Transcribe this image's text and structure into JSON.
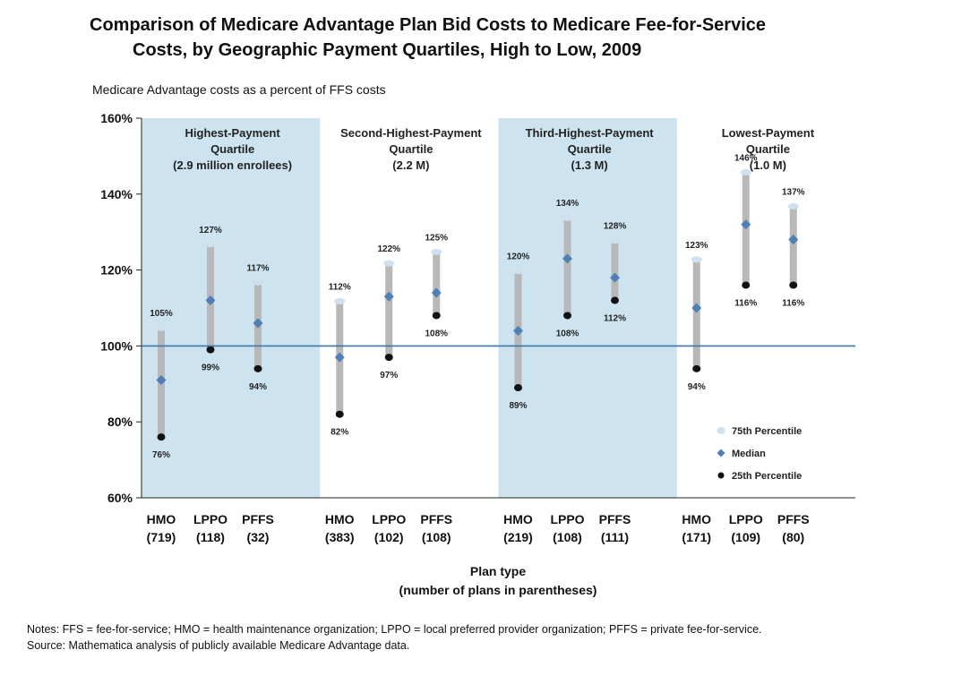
{
  "title_line1": "Comparison of Medicare Advantage Plan Bid Costs to Medicare Fee-for-Service",
  "title_line2": "Costs, by Geographic Payment Quartiles, High to Low, 2009",
  "subtitle": "Medicare Advantage costs as a percent of FFS costs",
  "notes_line1": "Notes: FFS = fee-for-service; HMO = health maintenance organization; LPPO = local preferred provider organization; PFFS = private fee-for-service.",
  "notes_line2": "Source: Mathematica analysis of publicly available Medicare Advantage data.",
  "colors": {
    "shade": "#cde3f0",
    "bar": "#b8b8b8",
    "p75": "#cfe0ee",
    "median": "#4f7fb6",
    "p25": "#111111",
    "baseline": "#3c78a8"
  },
  "chart_data": {
    "type": "box",
    "ylim": [
      60,
      160
    ],
    "yticks": [
      "60%",
      "80%",
      "100%",
      "120%",
      "140%",
      "160%"
    ],
    "ytick_values": [
      60,
      80,
      100,
      120,
      140,
      160
    ],
    "reference_line": 100,
    "xlabel_line1": "Plan type",
    "xlabel_line2": "(number of plans in parentheses)",
    "legend": [
      "75th Percentile",
      "Median",
      "25th Percentile"
    ],
    "legend_position": "bottom-right",
    "groups": [
      {
        "label_lines": [
          "Highest-Payment",
          "Quartile",
          "(2.9 million enrollees)"
        ],
        "shaded": true,
        "plans": [
          {
            "name": "HMO",
            "count": "(719)",
            "p75": 105,
            "median": 91,
            "p25": 76,
            "p75_label": "105%",
            "p25_label": "76%"
          },
          {
            "name": "LPPO",
            "count": "(118)",
            "p75": 127,
            "median": 112,
            "p25": 99,
            "p75_label": "127%",
            "p25_label": "99%"
          },
          {
            "name": "PFFS",
            "count": "(32)",
            "p75": 117,
            "median": 106,
            "p25": 94,
            "p75_label": "117%",
            "p25_label": "94%"
          }
        ]
      },
      {
        "label_lines": [
          "Second-Highest-Payment",
          "Quartile",
          "(2.2 M)"
        ],
        "shaded": false,
        "plans": [
          {
            "name": "HMO",
            "count": "(383)",
            "p75": 112,
            "median": 97,
            "p25": 82,
            "p75_label": "112%",
            "p25_label": "82%"
          },
          {
            "name": "LPPO",
            "count": "(102)",
            "p75": 122,
            "median": 113,
            "p25": 97,
            "p75_label": "122%",
            "p25_label": "97%"
          },
          {
            "name": "PFFS",
            "count": "(108)",
            "p75": 125,
            "median": 114,
            "p25": 108,
            "p75_label": "125%",
            "p25_label": "108%"
          }
        ]
      },
      {
        "label_lines": [
          "Third-Highest-Payment",
          "Quartile",
          "(1.3 M)"
        ],
        "shaded": true,
        "plans": [
          {
            "name": "HMO",
            "count": "(219)",
            "p75": 120,
            "median": 104,
            "p25": 89,
            "p75_label": "120%",
            "p25_label": "89%"
          },
          {
            "name": "LPPO",
            "count": "(108)",
            "p75": 134,
            "median": 123,
            "p25": 108,
            "p75_label": "134%",
            "p25_label": "108%"
          },
          {
            "name": "PFFS",
            "count": "(111)",
            "p75": 128,
            "median": 118,
            "p25": 112,
            "p75_label": "128%",
            "p25_label": "112%"
          }
        ]
      },
      {
        "label_lines": [
          "Lowest-Payment",
          "Quartile",
          "(1.0 M)"
        ],
        "shaded": false,
        "plans": [
          {
            "name": "HMO",
            "count": "(171)",
            "p75": 123,
            "median": 110,
            "p25": 94,
            "p75_label": "123%",
            "p25_label": "94%"
          },
          {
            "name": "LPPO",
            "count": "(109)",
            "p75": 146,
            "median": 132,
            "p25": 116,
            "p75_label": "146%",
            "p25_label": "116%"
          },
          {
            "name": "PFFS",
            "count": "(80)",
            "p75": 137,
            "median": 128,
            "p25": 116,
            "p75_label": "137%",
            "p25_label": "116%"
          }
        ]
      }
    ]
  }
}
